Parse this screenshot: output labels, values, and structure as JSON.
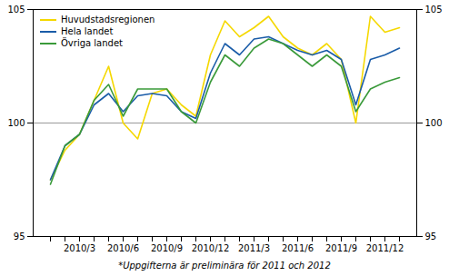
{
  "chart_data": {
    "type": "line",
    "categories": [
      null,
      null,
      "2010/3",
      null,
      null,
      "2010/6",
      null,
      null,
      "2010/9",
      null,
      null,
      "2010/12",
      null,
      null,
      "2011/3",
      null,
      null,
      "2011/6",
      null,
      null,
      "2011/9",
      null,
      null,
      "2011/12",
      null
    ],
    "series": [
      {
        "name": "Huvudstadsregionen",
        "color": "#f5d800",
        "values": [
          97.5,
          98.8,
          99.5,
          101.0,
          102.5,
          100.0,
          99.3,
          101.3,
          101.5,
          100.8,
          100.3,
          103.0,
          104.5,
          103.8,
          104.2,
          104.7,
          103.8,
          103.3,
          103.0,
          103.5,
          102.8,
          100.0,
          104.7,
          104.0,
          104.2
        ]
      },
      {
        "name": "Hela landet",
        "color": "#1a5ca8",
        "values": [
          97.5,
          99.0,
          99.5,
          100.8,
          101.3,
          100.5,
          101.2,
          101.3,
          101.2,
          100.5,
          100.2,
          102.2,
          103.5,
          103.0,
          103.7,
          103.8,
          103.5,
          103.2,
          103.0,
          103.2,
          102.8,
          100.8,
          102.8,
          103.0,
          103.3
        ]
      },
      {
        "name": "Övriga landet",
        "color": "#3a9a3a",
        "values": [
          97.3,
          99.0,
          99.5,
          101.0,
          101.7,
          100.3,
          101.5,
          101.5,
          101.5,
          100.5,
          100.0,
          101.8,
          103.0,
          102.5,
          103.3,
          103.7,
          103.5,
          103.0,
          102.5,
          103.0,
          102.5,
          100.5,
          101.5,
          101.8,
          102.0
        ]
      }
    ],
    "ylim": [
      95,
      105
    ],
    "yticks": [
      95,
      100,
      105
    ],
    "reference_line": 100,
    "grid": false,
    "legend": "upper left",
    "footnote": "*Uppgifterna är preliminära för 2011 och 2012"
  }
}
